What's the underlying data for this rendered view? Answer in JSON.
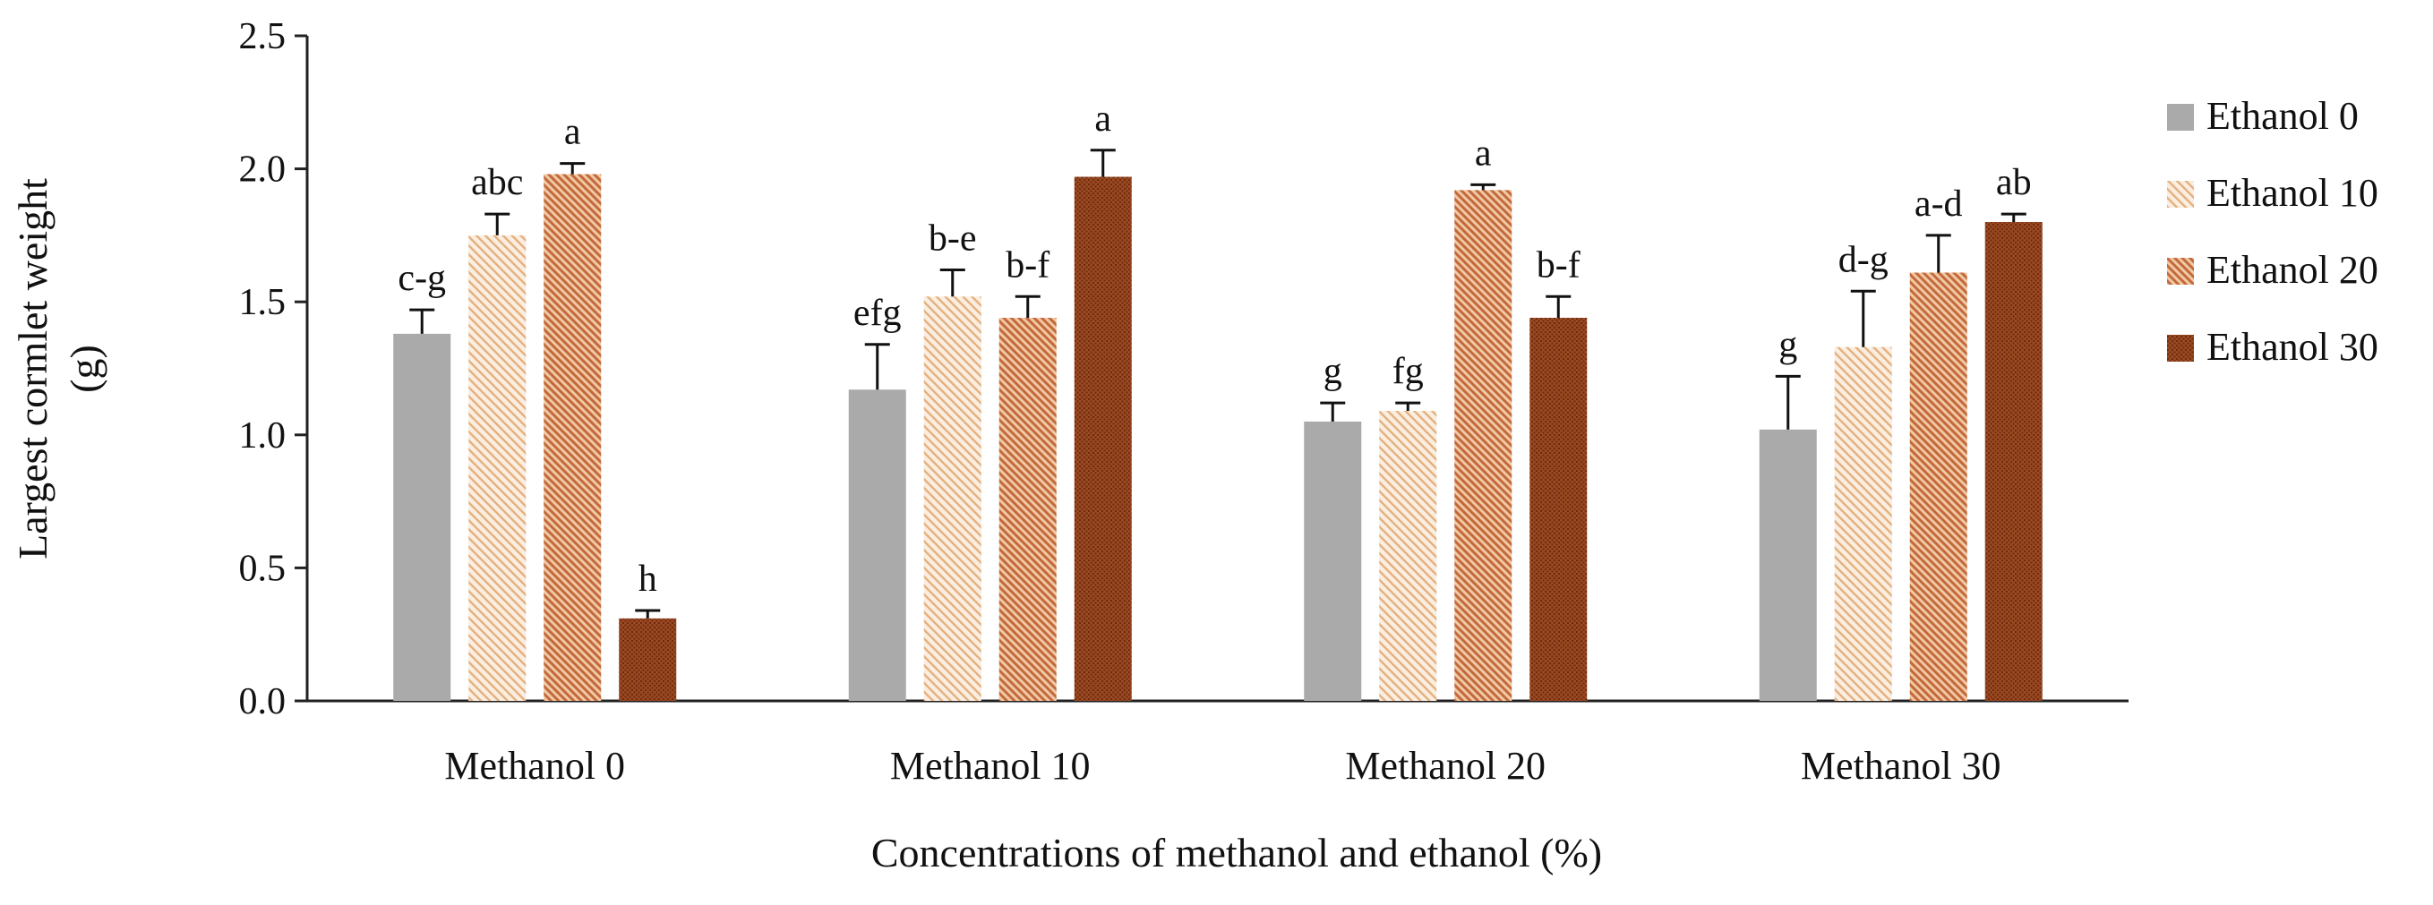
{
  "chart_data": {
    "type": "bar",
    "title": "",
    "xlabel": "Concentrations of methanol and ethanol (%)",
    "ylabel": [
      "Largest cormlet weight",
      "(g)"
    ],
    "ylim": [
      0,
      2.5
    ],
    "yticks": [
      0.0,
      0.5,
      1.0,
      1.5,
      2.0,
      2.5
    ],
    "ytick_labels": [
      "0.0",
      "0.5",
      "1.0",
      "1.5",
      "2.0",
      "2.5"
    ],
    "categories": [
      "Methanol 0",
      "Methanol 10",
      "Methanol 20",
      "Methanol 30"
    ],
    "legend_position": "right",
    "series": [
      {
        "name": "Ethanol 0",
        "pattern": "solid",
        "color": "#aaaaaa",
        "values": [
          1.38,
          1.17,
          1.05,
          1.02
        ],
        "errors": [
          0.09,
          0.17,
          0.07,
          0.2
        ],
        "letters": [
          "c-g",
          "efg",
          "g",
          "g"
        ]
      },
      {
        "name": "Ethanol 10",
        "pattern": "light-diagonal",
        "color": "#e6b98b",
        "values": [
          1.75,
          1.52,
          1.09,
          1.33
        ],
        "errors": [
          0.08,
          0.1,
          0.03,
          0.21
        ],
        "letters": [
          "abc",
          "b-e",
          "fg",
          "d-g"
        ]
      },
      {
        "name": "Ethanol 20",
        "pattern": "dense-diagonal",
        "color": "#c86f3e",
        "values": [
          1.98,
          1.44,
          1.92,
          1.61
        ],
        "errors": [
          0.04,
          0.08,
          0.02,
          0.14
        ],
        "letters": [
          "a",
          "b-f",
          "a",
          "a-d"
        ]
      },
      {
        "name": "Ethanol 30",
        "pattern": "crosshatch",
        "color": "#8a3a14",
        "values": [
          0.31,
          1.97,
          1.44,
          1.8
        ],
        "errors": [
          0.03,
          0.1,
          0.08,
          0.03
        ],
        "letters": [
          "h",
          "a",
          "b-f",
          "ab"
        ]
      }
    ]
  }
}
